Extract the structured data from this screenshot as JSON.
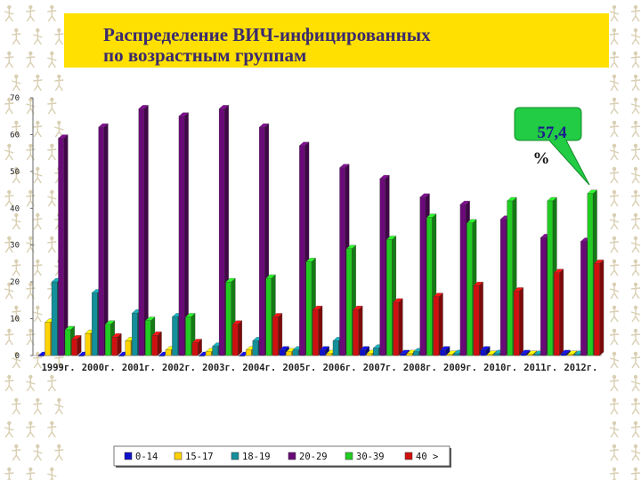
{
  "title": {
    "line1": "Распределение ВИЧ-инфицированных",
    "line2": "по возрастным группам"
  },
  "callout": {
    "value": "57,4",
    "unit": "%"
  },
  "colors": {
    "title_background": "#ffe000",
    "title_text": "#3a2a6e",
    "callout_fill": "#22cc44",
    "callout_text": "#1b1b8c"
  },
  "chart_data": {
    "type": "bar",
    "style": "3d-clustered",
    "categories": [
      "1999г.",
      "2000г.",
      "2001г.",
      "2002г.",
      "2003г.",
      "2004г.",
      "2005г.",
      "2006г.",
      "2007г.",
      "2008г.",
      "2009г.",
      "2010г.",
      "2011г.",
      "2012г."
    ],
    "series": [
      {
        "name": "0-14",
        "color": "#1010c8",
        "values": [
          0,
          0,
          0,
          0,
          0,
          0,
          1.5,
          1.5,
          1.5,
          0.5,
          1.5,
          1.5,
          0.5,
          0.5
        ]
      },
      {
        "name": "15-17",
        "color": "#ffd200",
        "values": [
          9,
          6,
          4,
          1.5,
          1,
          1.5,
          1,
          0.5,
          0.5,
          0.5,
          0.3,
          0.3,
          0.3,
          0.3
        ]
      },
      {
        "name": "18-19",
        "color": "#14909a",
        "values": [
          20,
          17,
          11.5,
          10.5,
          2.5,
          4,
          1.5,
          4,
          2,
          1,
          0.5,
          0.5,
          0.3,
          0.3
        ]
      },
      {
        "name": "20-29",
        "color": "#6a0a78",
        "values": [
          59,
          62,
          67,
          65,
          67,
          62,
          57,
          51,
          48,
          43,
          41,
          37,
          32,
          31
        ]
      },
      {
        "name": "30-39",
        "color": "#22cc22",
        "values": [
          7,
          8.5,
          9.5,
          10.5,
          20,
          21,
          25.5,
          29,
          31.5,
          37.5,
          36,
          42,
          42,
          44
        ]
      },
      {
        "name": "40 >",
        "color": "#d01010",
        "values": [
          4.5,
          5,
          5.5,
          3.5,
          8.5,
          10.5,
          12.5,
          12.5,
          14.5,
          16,
          19,
          17.5,
          22.5,
          25
        ]
      }
    ],
    "ylim": [
      0,
      70
    ],
    "yticks": [
      0,
      10,
      20,
      30,
      40,
      50,
      60,
      70
    ],
    "grid": false,
    "legend_position": "bottom"
  }
}
